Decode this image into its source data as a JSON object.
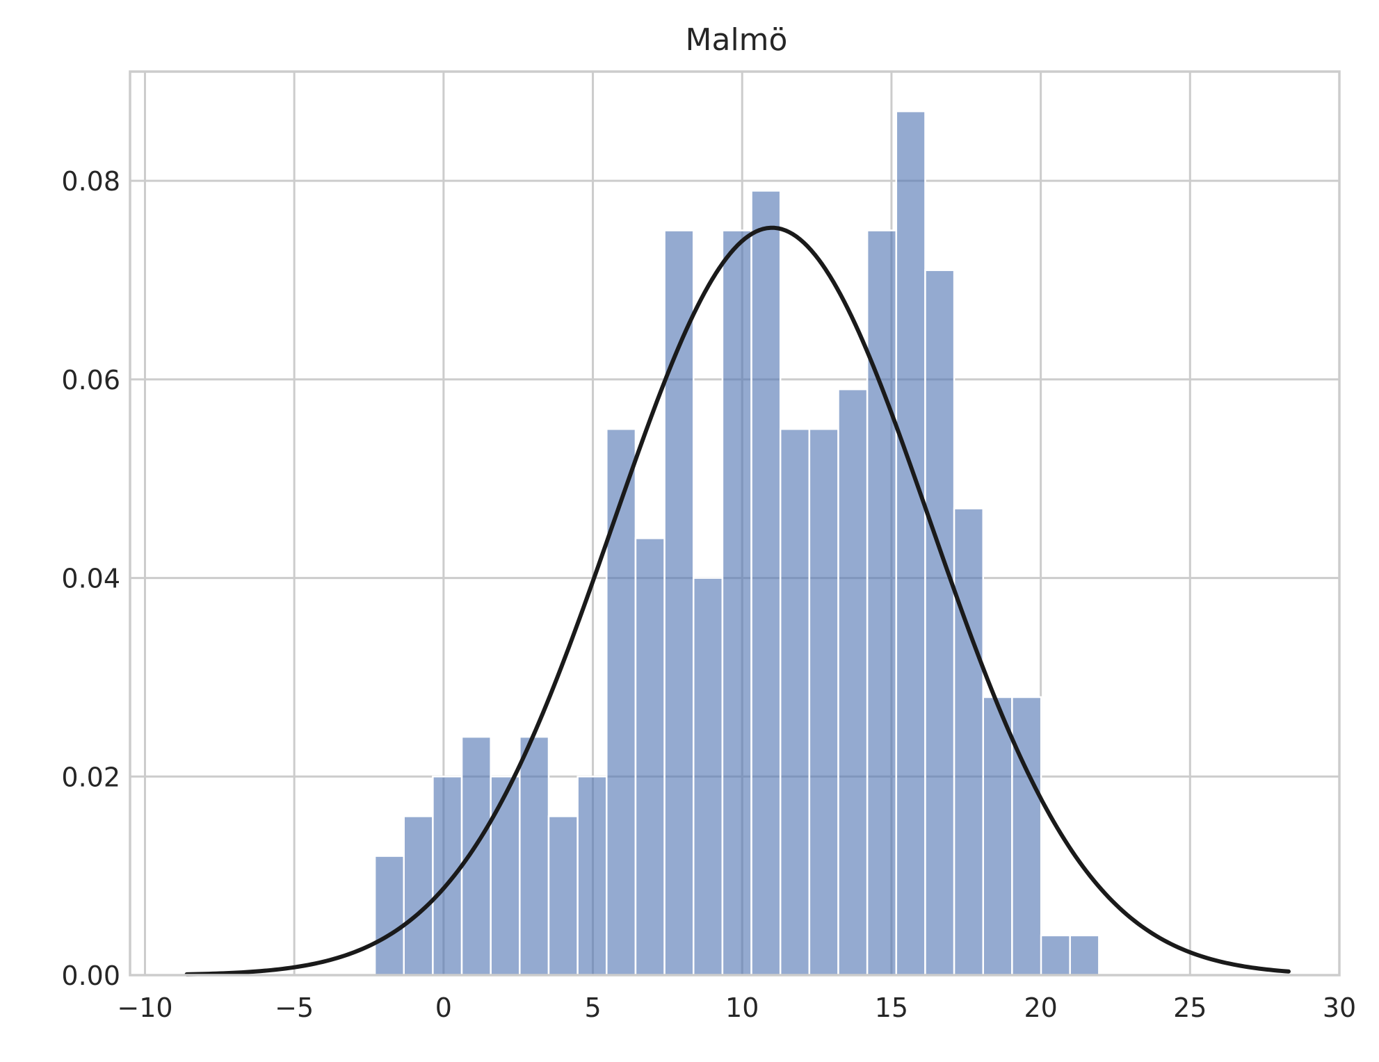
{
  "chart_data": {
    "type": "bar",
    "title": "Malmö",
    "xlabel": "",
    "ylabel": "",
    "xlim": [
      -10.5,
      30
    ],
    "ylim": [
      0,
      0.091
    ],
    "xticks": [
      -10,
      -5,
      0,
      5,
      10,
      15,
      20,
      25,
      30
    ],
    "yticks": [
      0.0,
      0.02,
      0.04,
      0.06,
      0.08
    ],
    "xtick_labels": [
      "−10",
      "−5",
      "0",
      "5",
      "10",
      "15",
      "20",
      "25",
      "30"
    ],
    "ytick_labels": [
      "0.00",
      "0.02",
      "0.04",
      "0.06",
      "0.08"
    ],
    "grid": true,
    "bin_edges": [
      -2.3,
      -1.33,
      -0.36,
      0.61,
      1.58,
      2.55,
      3.52,
      4.49,
      5.46,
      6.43,
      7.4,
      8.37,
      9.34,
      10.31,
      11.28,
      12.25,
      13.22,
      14.19,
      15.16,
      16.13,
      17.1,
      18.07,
      19.04,
      20.01,
      20.98,
      21.95
    ],
    "values": [
      0.012,
      0.016,
      0.02,
      0.024,
      0.02,
      0.024,
      0.016,
      0.02,
      0.055,
      0.044,
      0.075,
      0.04,
      0.075,
      0.079,
      0.055,
      0.055,
      0.059,
      0.075,
      0.087,
      0.071,
      0.047,
      0.028,
      0.028,
      0.004,
      0.004
    ],
    "bar_color": "#4c72b0",
    "bar_alpha": 0.6,
    "curve": {
      "type": "normal_pdf",
      "mean": 11.0,
      "std": 5.3,
      "x_range": [
        -8.6,
        28.3
      ],
      "color": "#1a1a1a"
    }
  }
}
